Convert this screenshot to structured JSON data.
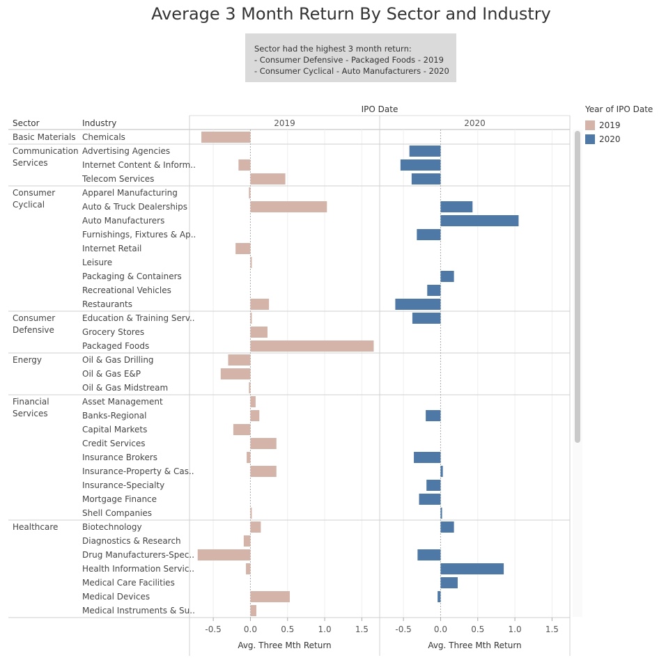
{
  "title": "Average 3 Month Return By Sector and Industry",
  "annotation": {
    "lines": [
      "Sector had the highest 3 month return:",
      "- Consumer Defensive - Packaged Foods - 2019",
      "- Consumer Cyclical - Auto Manufacturers - 2020"
    ]
  },
  "legend": {
    "title": "Year of IPO Date",
    "items": [
      {
        "label": "2019",
        "color": "#d4b4a8"
      },
      {
        "label": "2020",
        "color": "#4e79a7"
      }
    ]
  },
  "chart_data": {
    "type": "bar",
    "column_header_label": "IPO Date",
    "row_headers": [
      "Sector",
      "Industry"
    ],
    "panels": [
      "2019",
      "2020"
    ],
    "xlabel": "Avg. Three Mth Return",
    "xlim": [
      -0.82,
      1.74
    ],
    "xticks": [
      -0.5,
      0.0,
      0.5,
      1.0,
      1.5
    ],
    "xtick_labels": [
      "-0.5",
      "0.0",
      "0.5",
      "1.0",
      "1.5"
    ],
    "colors": {
      "2019": "#d4b4a8",
      "2020": "#4e79a7"
    },
    "sectors": [
      {
        "name": [
          "Basic Materials"
        ],
        "industries": [
          {
            "name": "Chemicals",
            "v2019": -0.66,
            "v2020": null
          }
        ]
      },
      {
        "name": [
          "Communication",
          "Services"
        ],
        "industries": [
          {
            "name": "Advertising Agencies",
            "v2019": null,
            "v2020": -0.42
          },
          {
            "name": "Internet Content & Inform..",
            "v2019": -0.16,
            "v2020": -0.54
          },
          {
            "name": "Telecom Services",
            "v2019": 0.47,
            "v2020": -0.39
          }
        ]
      },
      {
        "name": [
          "Consumer",
          "Cyclical"
        ],
        "industries": [
          {
            "name": "Apparel Manufacturing",
            "v2019": -0.02,
            "v2020": null
          },
          {
            "name": "Auto & Truck Dealerships",
            "v2019": 1.03,
            "v2020": 0.43
          },
          {
            "name": "Auto Manufacturers",
            "v2019": null,
            "v2020": 1.05
          },
          {
            "name": "Furnishings, Fixtures & Ap..",
            "v2019": null,
            "v2020": -0.32
          },
          {
            "name": "Internet Retail",
            "v2019": -0.2,
            "v2020": null
          },
          {
            "name": "Leisure",
            "v2019": 0.01,
            "v2020": null
          },
          {
            "name": "Packaging & Containers",
            "v2019": null,
            "v2020": 0.18
          },
          {
            "name": "Recreational Vehicles",
            "v2019": null,
            "v2020": -0.18
          },
          {
            "name": "Restaurants",
            "v2019": 0.25,
            "v2020": -0.61
          }
        ]
      },
      {
        "name": [
          "Consumer",
          "Defensive"
        ],
        "industries": [
          {
            "name": "Education & Training Serv..",
            "v2019": 0.01,
            "v2020": -0.38
          },
          {
            "name": "Grocery Stores",
            "v2019": 0.23,
            "v2020": null
          },
          {
            "name": "Packaged Foods",
            "v2019": 1.66,
            "v2020": null
          }
        ]
      },
      {
        "name": [
          "Energy"
        ],
        "industries": [
          {
            "name": "Oil & Gas Drilling",
            "v2019": -0.3,
            "v2020": null
          },
          {
            "name": "Oil & Gas E&P",
            "v2019": -0.4,
            "v2020": null
          },
          {
            "name": "Oil & Gas Midstream",
            "v2019": -0.02,
            "v2020": null
          }
        ]
      },
      {
        "name": [
          "Financial",
          "Services"
        ],
        "industries": [
          {
            "name": "Asset Management",
            "v2019": 0.07,
            "v2020": null
          },
          {
            "name": "Banks-Regional",
            "v2019": 0.12,
            "v2020": -0.2
          },
          {
            "name": "Capital Markets",
            "v2019": -0.23,
            "v2020": null
          },
          {
            "name": "Credit Services",
            "v2019": 0.35,
            "v2020": null
          },
          {
            "name": "Insurance Brokers",
            "v2019": -0.05,
            "v2020": -0.36
          },
          {
            "name": "Insurance-Property & Cas..",
            "v2019": 0.35,
            "v2020": 0.03
          },
          {
            "name": "Insurance-Specialty",
            "v2019": null,
            "v2020": -0.19
          },
          {
            "name": "Mortgage Finance",
            "v2019": null,
            "v2020": -0.29
          },
          {
            "name": "Shell Companies",
            "v2019": 0.01,
            "v2020": 0.02
          }
        ]
      },
      {
        "name": [
          "Healthcare"
        ],
        "industries": [
          {
            "name": "Biotechnology",
            "v2019": 0.14,
            "v2020": 0.18
          },
          {
            "name": "Diagnostics & Research",
            "v2019": -0.09,
            "v2020": null
          },
          {
            "name": "Drug Manufacturers-Spec..",
            "v2019": -0.71,
            "v2020": -0.31
          },
          {
            "name": "Health Information Servic..",
            "v2019": -0.06,
            "v2020": 0.85
          },
          {
            "name": "Medical Care Facilities",
            "v2019": null,
            "v2020": 0.23
          },
          {
            "name": "Medical Devices",
            "v2019": 0.53,
            "v2020": -0.04
          },
          {
            "name": "Medical Instruments & Su..",
            "v2019": 0.08,
            "v2020": null
          }
        ]
      }
    ]
  }
}
